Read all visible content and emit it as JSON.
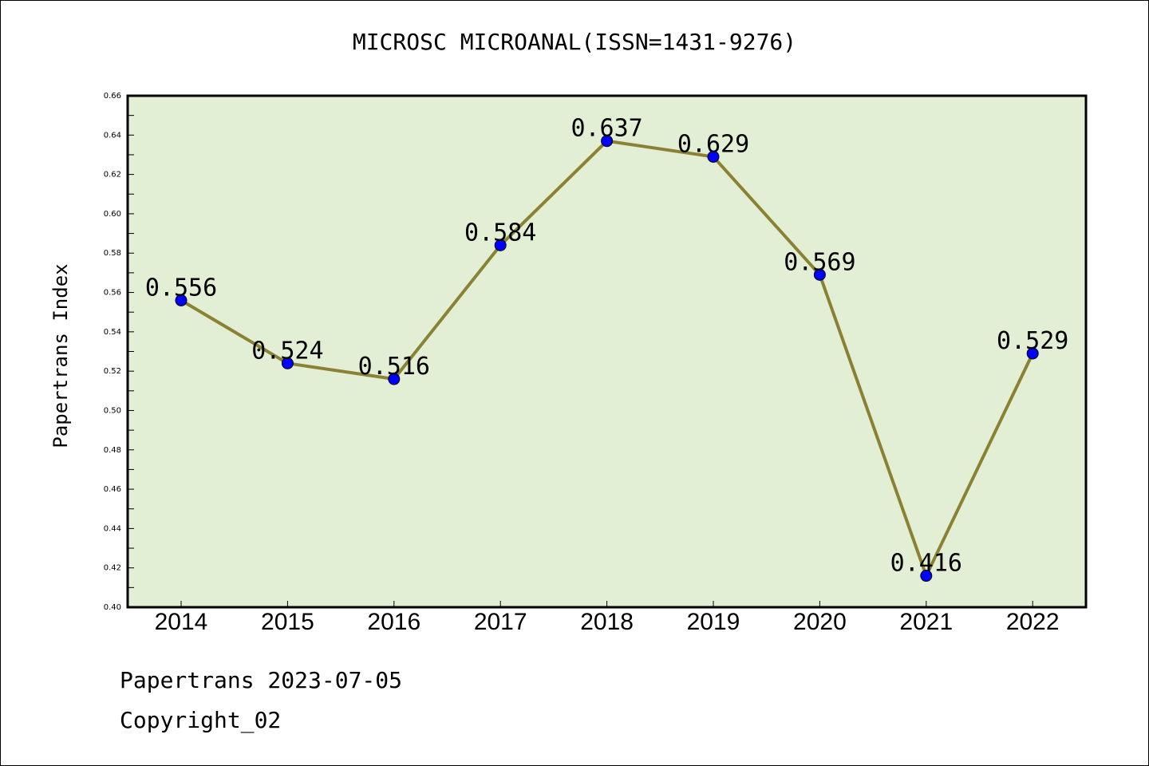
{
  "chart_data": {
    "type": "line",
    "title": "MICROSC MICROANAL(ISSN=1431-9276)",
    "xlabel": "",
    "ylabel": "Papertrans Index",
    "categories": [
      "2014",
      "2015",
      "2016",
      "2017",
      "2018",
      "2019",
      "2020",
      "2021",
      "2022"
    ],
    "values": [
      0.556,
      0.524,
      0.516,
      0.584,
      0.637,
      0.629,
      0.569,
      0.416,
      0.529
    ],
    "data_labels": [
      "0.556",
      "0.524",
      "0.516",
      "0.584",
      "0.637",
      "0.629",
      "0.569",
      "0.416",
      "0.529"
    ],
    "ylim": [
      0.4,
      0.66
    ],
    "yticks": [
      "0.40",
      "0.42",
      "0.44",
      "0.46",
      "0.48",
      "0.50",
      "0.52",
      "0.54",
      "0.56",
      "0.58",
      "0.60",
      "0.62",
      "0.64",
      "0.66"
    ],
    "grid": false,
    "colors": {
      "line": "#8b8133",
      "marker": "#0000ff",
      "plot_background": "#e2efd5"
    }
  },
  "footer": {
    "date_line": "Papertrans 2023-07-05",
    "copyright": "Copyright_02"
  }
}
